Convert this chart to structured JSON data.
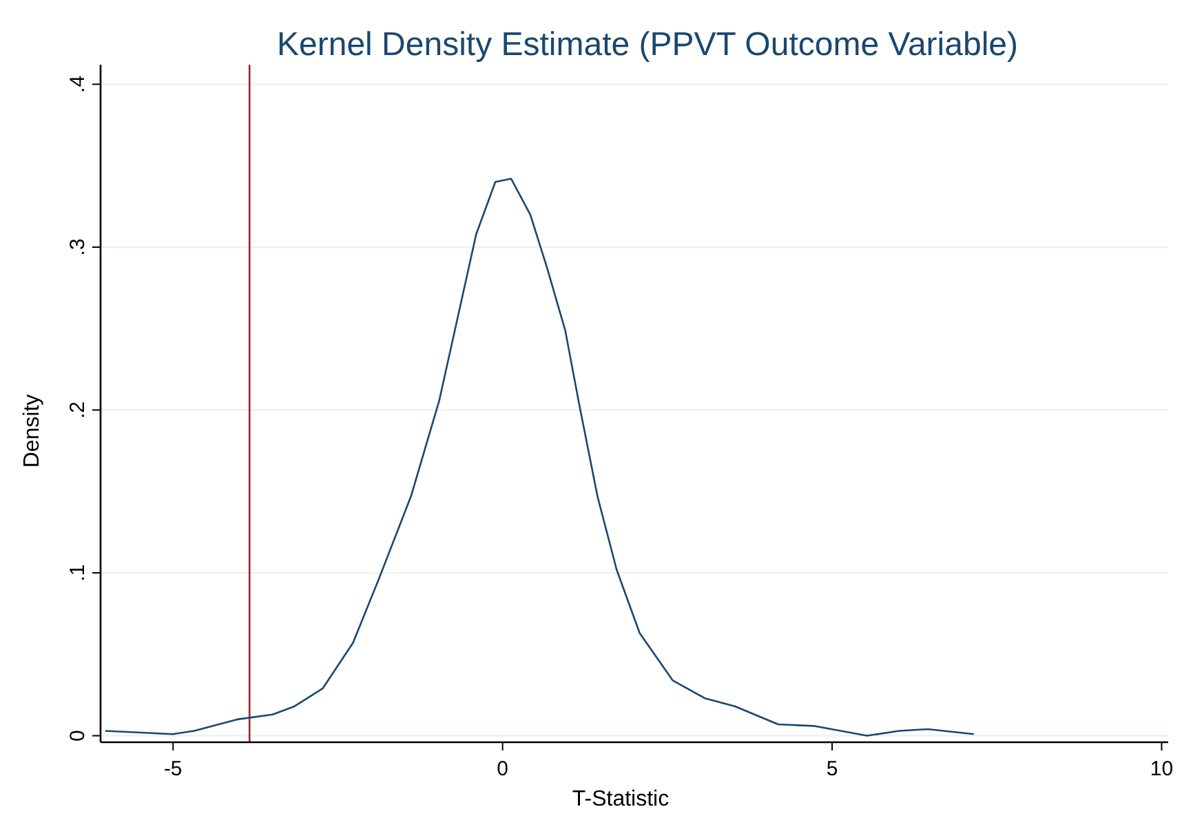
{
  "chart_data": {
    "type": "line",
    "title": "Kernel Density Estimate (PPVT Outcome Variable)",
    "xlabel": "T-Statistic",
    "ylabel": "Density",
    "x": [
      -6.03,
      -5,
      -4.68,
      -4.03,
      -3.49,
      -3.16,
      -2.73,
      -2.27,
      -1.88,
      -1.39,
      -0.96,
      -0.4,
      -0.11,
      0.13,
      0.42,
      0.67,
      0.95,
      1.16,
      1.44,
      1.73,
      2.08,
      2.58,
      3.07,
      3.53,
      4.18,
      4.72,
      5.53,
      6.02,
      6.45,
      7.15
    ],
    "series": [
      {
        "color": "#1a476f",
        "values": [
          0.003,
          0.001,
          0.003,
          0.01,
          0.013,
          0.018,
          0.029,
          0.057,
          0.096,
          0.147,
          0.206,
          0.308,
          0.34,
          0.342,
          0.32,
          0.288,
          0.249,
          0.204,
          0.147,
          0.102,
          0.063,
          0.034,
          0.023,
          0.018,
          0.007,
          0.006,
          0,
          0.003,
          0.004,
          0.001
        ]
      }
    ],
    "xlim": [
      -6.1,
      10.1
    ],
    "xticks": [
      {
        "value": -5,
        "label": "-5"
      },
      0,
      5,
      10
    ],
    "ylim": [
      -0.004,
      0.412
    ],
    "yticks": [
      0,
      {
        "value": 0.1,
        "label": ".1"
      },
      {
        "value": 0.2,
        "label": ".2"
      },
      {
        "value": 0.3,
        "label": ".3"
      },
      {
        "value": 0.4,
        "label": ".4"
      }
    ],
    "grid": "y",
    "marker": "none",
    "line_style": "solid",
    "ref_lines": [
      {
        "axis": "x",
        "value": -3.84,
        "color": "#a0232e"
      }
    ]
  }
}
